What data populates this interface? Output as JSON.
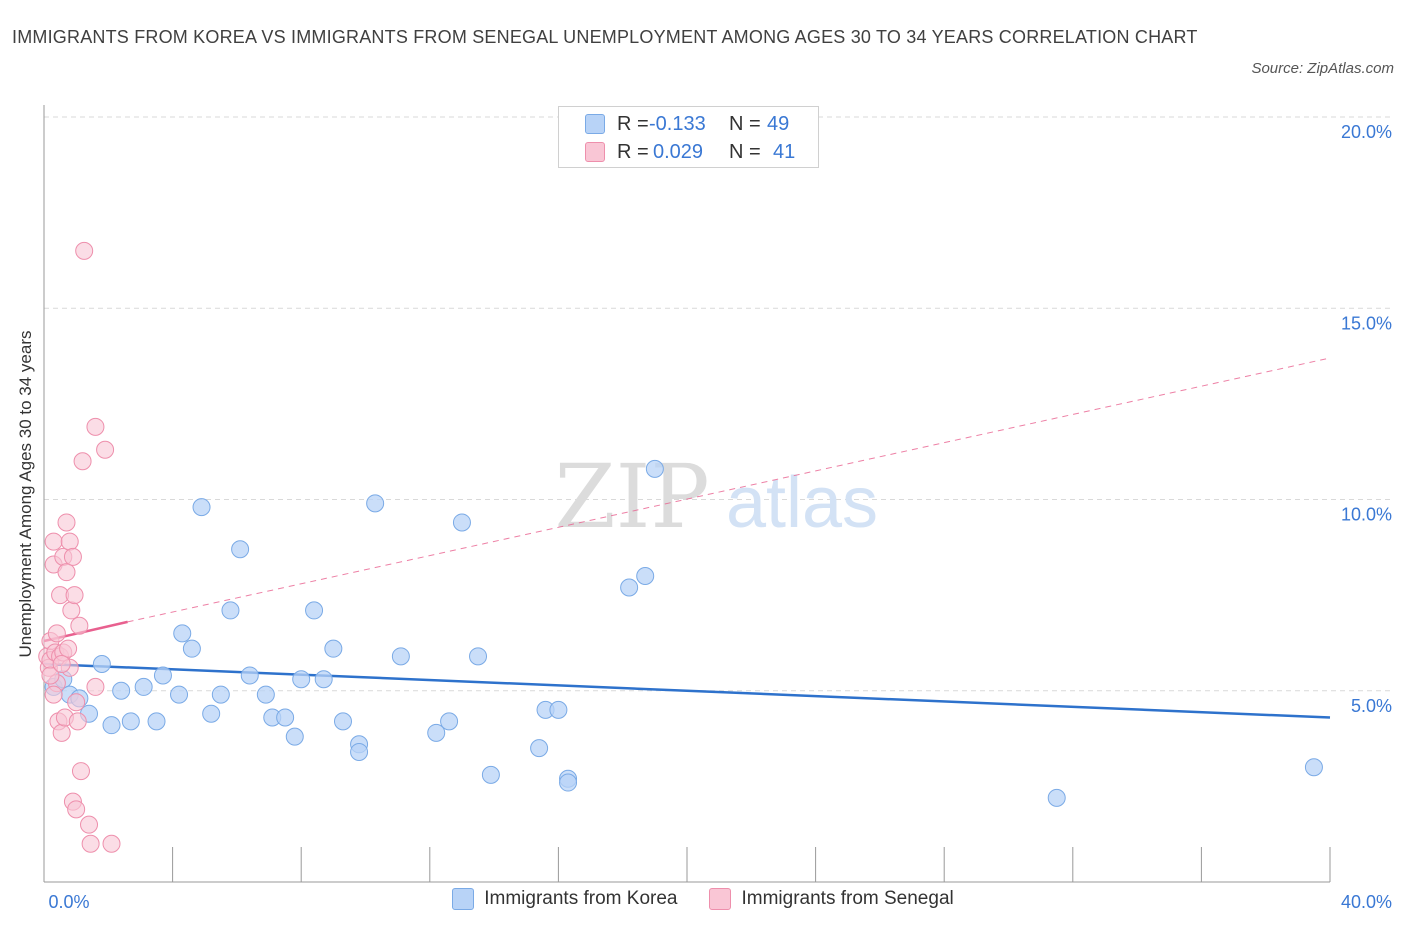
{
  "title": "IMMIGRANTS FROM KOREA VS IMMIGRANTS FROM SENEGAL UNEMPLOYMENT AMONG AGES 30 TO 34 YEARS CORRELATION CHART",
  "source": "Source: ZipAtlas.com",
  "watermark": {
    "zip": "ZIP",
    "atlas": "atlas"
  },
  "legend": {
    "korea": {
      "r_label": "R =",
      "r_value": "-0.133",
      "n_label": "N =",
      "n_value": "49"
    },
    "senegal": {
      "r_label": "R =",
      "r_value": "0.029",
      "n_label": "N =",
      "n_value": "41"
    }
  },
  "colors": {
    "korea_fill": "#b8d3f7",
    "korea_stroke": "#7aaae6",
    "korea_line": "#2e72cc",
    "senegal_fill": "#f9c6d5",
    "senegal_stroke": "#ee8fac",
    "senegal_line": "#e8608f",
    "tick_text": "#3a78d4",
    "grid": "#d9d9d9"
  },
  "chart_data": {
    "type": "scatter",
    "title": "IMMIGRANTS FROM KOREA VS IMMIGRANTS FROM SENEGAL UNEMPLOYMENT AMONG AGES 30 TO 34 YEARS CORRELATION CHART",
    "xlabel": "",
    "ylabel": "Unemployment Among Ages 30 to 34 years",
    "xlim": [
      0,
      40
    ],
    "ylim": [
      0,
      20
    ],
    "x_tick_labels": [
      "0.0%",
      "40.0%"
    ],
    "y_ticks": [
      5,
      10,
      15,
      20
    ],
    "y_tick_labels": [
      "5.0%",
      "10.0%",
      "15.0%",
      "20.0%"
    ],
    "grid": true,
    "legend_position": "top-center",
    "series": [
      {
        "name": "Immigrants from Korea",
        "points": [
          [
            0.3,
            5.1
          ],
          [
            0.6,
            5.3
          ],
          [
            0.8,
            4.9
          ],
          [
            1.1,
            4.8
          ],
          [
            1.4,
            4.4
          ],
          [
            1.8,
            5.7
          ],
          [
            2.1,
            4.1
          ],
          [
            2.4,
            5.0
          ],
          [
            2.7,
            4.2
          ],
          [
            3.1,
            5.1
          ],
          [
            3.5,
            4.2
          ],
          [
            3.7,
            5.4
          ],
          [
            4.2,
            4.9
          ],
          [
            4.3,
            6.5
          ],
          [
            4.6,
            6.1
          ],
          [
            4.9,
            9.8
          ],
          [
            5.2,
            4.4
          ],
          [
            5.5,
            4.9
          ],
          [
            5.8,
            7.1
          ],
          [
            6.1,
            8.7
          ],
          [
            6.4,
            5.4
          ],
          [
            6.9,
            4.9
          ],
          [
            7.1,
            4.3
          ],
          [
            7.5,
            4.3
          ],
          [
            7.8,
            3.8
          ],
          [
            8.0,
            5.3
          ],
          [
            8.4,
            7.1
          ],
          [
            8.7,
            5.3
          ],
          [
            9.0,
            6.1
          ],
          [
            9.3,
            4.2
          ],
          [
            9.8,
            3.6
          ],
          [
            9.8,
            3.4
          ],
          [
            10.3,
            9.9
          ],
          [
            11.1,
            5.9
          ],
          [
            12.2,
            3.9
          ],
          [
            12.6,
            4.2
          ],
          [
            13.0,
            9.4
          ],
          [
            13.5,
            5.9
          ],
          [
            13.9,
            2.8
          ],
          [
            15.4,
            3.5
          ],
          [
            15.6,
            4.5
          ],
          [
            16.0,
            4.5
          ],
          [
            16.3,
            2.7
          ],
          [
            16.3,
            2.6
          ],
          [
            18.2,
            7.7
          ],
          [
            18.7,
            8.0
          ],
          [
            19.0,
            10.8
          ],
          [
            31.5,
            2.2
          ],
          [
            39.5,
            3.0
          ]
        ]
      },
      {
        "name": "Immigrants from Senegal",
        "points": [
          [
            0.1,
            5.9
          ],
          [
            0.15,
            5.6
          ],
          [
            0.2,
            6.3
          ],
          [
            0.2,
            5.8
          ],
          [
            0.3,
            8.3
          ],
          [
            0.3,
            8.9
          ],
          [
            0.35,
            6.0
          ],
          [
            0.4,
            6.5
          ],
          [
            0.4,
            5.2
          ],
          [
            0.45,
            4.2
          ],
          [
            0.5,
            7.5
          ],
          [
            0.5,
            5.9
          ],
          [
            0.55,
            3.9
          ],
          [
            0.6,
            8.5
          ],
          [
            0.6,
            6.0
          ],
          [
            0.65,
            4.3
          ],
          [
            0.7,
            9.4
          ],
          [
            0.7,
            8.1
          ],
          [
            0.75,
            6.1
          ],
          [
            0.8,
            8.9
          ],
          [
            0.8,
            5.6
          ],
          [
            0.85,
            7.1
          ],
          [
            0.9,
            8.5
          ],
          [
            0.9,
            2.1
          ],
          [
            0.95,
            7.5
          ],
          [
            1.0,
            4.7
          ],
          [
            1.0,
            1.9
          ],
          [
            1.05,
            4.2
          ],
          [
            1.1,
            6.7
          ],
          [
            1.15,
            2.9
          ],
          [
            1.2,
            11.0
          ],
          [
            1.25,
            16.5
          ],
          [
            1.4,
            1.5
          ],
          [
            1.45,
            1.0
          ],
          [
            1.6,
            5.1
          ],
          [
            1.6,
            11.9
          ],
          [
            1.9,
            11.3
          ],
          [
            2.1,
            1.0
          ],
          [
            0.2,
            5.4
          ],
          [
            0.55,
            5.7
          ],
          [
            0.3,
            4.9
          ]
        ]
      }
    ],
    "trend_lines": [
      {
        "name": "Immigrants from Korea",
        "x": [
          0,
          40
        ],
        "y": [
          5.7,
          4.3
        ],
        "style": "solid"
      },
      {
        "name": "Immigrants from Senegal",
        "x": [
          0,
          2.6
        ],
        "y": [
          6.3,
          6.8
        ],
        "style": "solid"
      },
      {
        "name": "Immigrants from Senegal",
        "x": [
          2.6,
          40
        ],
        "y": [
          6.8,
          13.7
        ],
        "style": "dashed"
      }
    ]
  }
}
